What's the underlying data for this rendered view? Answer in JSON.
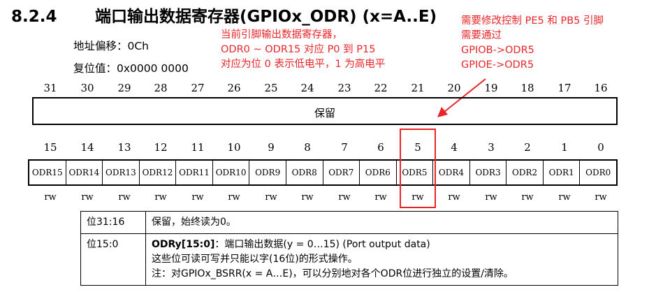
{
  "title": {
    "number": "8.2.4",
    "text": "端口输出数据寄存器(GPIOx_ODR) (x=A..E)"
  },
  "address_offset": "地址偏移：0Ch",
  "reset_value": "复位值：0x0000 0000",
  "annotation_center": [
    "当前引脚输出数据寄存器，",
    "ODR0 ~ ODR15 对应 P0 到 P15",
    "对应为位 0 表示低电平，1 为高电平"
  ],
  "annotation_right": [
    "需要修改控制 PE5 和 PB5 引脚",
    "需要通过",
    "GPIOB->ODR5",
    "GPIOE->ODR5"
  ],
  "high_bits": [
    "31",
    "30",
    "29",
    "28",
    "27",
    "26",
    "25",
    "24",
    "23",
    "22",
    "21",
    "20",
    "19",
    "18",
    "17",
    "16"
  ],
  "reserved_label": "保留",
  "low_bits": [
    "15",
    "14",
    "13",
    "12",
    "11",
    "10",
    "9",
    "8",
    "7",
    "6",
    "5",
    "4",
    "3",
    "2",
    "1",
    "0"
  ],
  "odr_fields": [
    "ODR15",
    "ODR14",
    "ODR13",
    "ODR12",
    "ODR11",
    "ODR10",
    "ODR9",
    "ODR8",
    "ODR7",
    "ODR6",
    "ODR5",
    "ODR4",
    "ODR3",
    "ODR2",
    "ODR1",
    "ODR0"
  ],
  "access": "rw",
  "access_list": [
    "rw",
    "rw",
    "rw",
    "rw",
    "rw",
    "rw",
    "rw",
    "rw",
    "rw",
    "rw",
    "rw",
    "rw",
    "rw",
    "rw",
    "rw",
    "rw"
  ],
  "highlighted_bit": "5",
  "colors": {
    "annotation": "#e8262a"
  },
  "description_rows": [
    {
      "bits": "位31:16",
      "lines": [
        "保留，始终读为0。"
      ]
    },
    {
      "bits": "位15:0",
      "field": "ODRy[15:0]",
      "lines": [
        "：端口输出数据(y = 0…15) (Port output data)",
        "这些位可读可写并只能以字(16位)的形式操作。",
        "注：对GPIOx_BSRR(x = A…E)，可以分别地对各个ODR位进行独立的设置/清除。"
      ]
    }
  ]
}
